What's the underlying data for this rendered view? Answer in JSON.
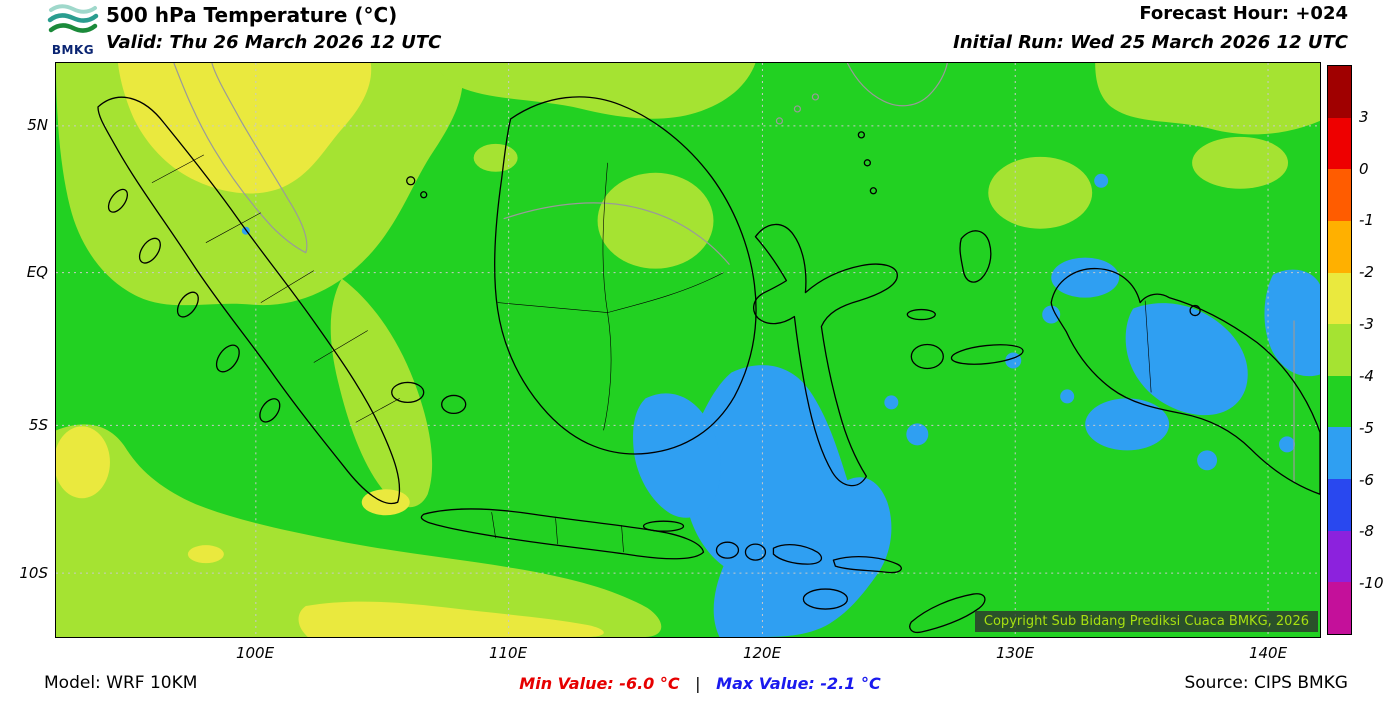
{
  "header": {
    "logo_text": "BMKG",
    "title": "500 hPa Temperature (°C)",
    "valid": "Valid: Thu 26 March 2026 12 UTC",
    "forecast_hour": "Forecast Hour: +024",
    "initial_run": "Initial Run: Wed 25 March 2026 12 UTC"
  },
  "map": {
    "copyright": "Copyright Sub Bidang Prediksi Cuaca BMKG, 2026",
    "lat_labels": [
      "5N",
      "EQ",
      "5S",
      "10S"
    ],
    "lon_labels": [
      "100E",
      "110E",
      "120E",
      "130E",
      "140E"
    ]
  },
  "colorbar": {
    "ticks": [
      "3",
      "0",
      "-1",
      "-2",
      "-3",
      "-4",
      "-5",
      "-6",
      "-8",
      "-10"
    ],
    "colors": [
      "#a00000",
      "#ee0000",
      "#ff5c00",
      "#ffb000",
      "#eae93e",
      "#a5e332",
      "#22d122",
      "#2f9ff2",
      "#2948ef",
      "#8c22dd",
      "#c4109a"
    ]
  },
  "footer": {
    "model": "Model: WRF 10KM",
    "min_text": "Min Value: -6.0 °C",
    "separator": "|",
    "max_text": "Max Value: -2.1 °C",
    "source": "Source: CIPS BMKG"
  },
  "palette": {
    "map_green": "#22d122",
    "map_light_green": "#a5e332",
    "map_yellow": "#eae93e",
    "map_blue": "#2f9ff2",
    "coast_black": "#000000",
    "coast_grey": "#9a9a9a",
    "grid": "#c9c9c9",
    "copyright_bg": "rgba(45,45,45,0.78)",
    "copyright_text": "#a6e011",
    "min_color": "#e60000",
    "max_color": "#1a1aee"
  }
}
